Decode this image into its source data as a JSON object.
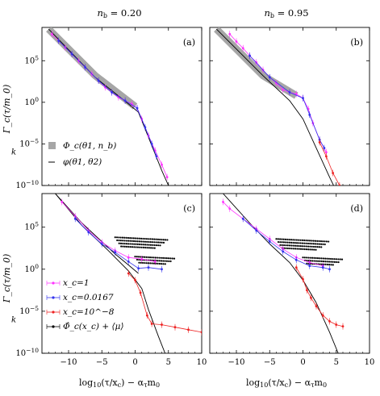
{
  "chart_data": {
    "type": "scatter",
    "x_scale": "linear",
    "y_scale": "log",
    "xlim": [
      -14,
      10
    ],
    "ylim_log10": [
      -10,
      9
    ],
    "xlabel": "log10(τ/x_c) − α_τ m_0",
    "ylabel": "",
    "x_ticks": [
      "−10",
      "−5",
      "0",
      "5",
      "10"
    ],
    "y_ticks": [
      "10^5",
      "10^0",
      "10^−5",
      "10^−10"
    ],
    "column_titles": [
      "n_b = 0.20",
      "n_b = 0.95"
    ],
    "ylabel_fragments": {
      "top": "Γ_c(τ/m_0)",
      "bottom": "Γ_c(τ/m_0)",
      "k_mark": "k"
    },
    "colors": {
      "magenta": "#ff33ff",
      "blue": "#3333ee",
      "red": "#ee2222",
      "black": "#000000",
      "gray": "#a6a6a6"
    },
    "panels": [
      {
        "label": "(a)",
        "legend": [
          {
            "symbol": "gray-square",
            "text": "Φ_c(θ1, n_b)"
          },
          {
            "symbol": "dash",
            "text": "φ(θ1, θ2)"
          }
        ],
        "series": [
          {
            "color": "magenta",
            "points": [
              [
                -12.5,
                8.2
              ],
              [
                -11.5,
                7.4
              ],
              [
                -10.5,
                6.6
              ],
              [
                -9.5,
                5.8
              ],
              [
                -8.5,
                5.0
              ],
              [
                -7.5,
                4.2
              ],
              [
                -6.5,
                3.4
              ],
              [
                -5.5,
                2.6
              ],
              [
                -4.5,
                1.8
              ],
              [
                -3.5,
                1.2
              ],
              [
                -2.5,
                0.6
              ],
              [
                -1.5,
                0.2
              ],
              [
                -0.5,
                -0.2
              ],
              [
                0.3,
                -0.7
              ],
              [
                1,
                -2
              ],
              [
                2,
                -4
              ],
              [
                3,
                -5.8
              ],
              [
                4,
                -7.5
              ],
              [
                4.8,
                -9
              ]
            ]
          },
          {
            "color": "blue",
            "points": [
              [
                -11.5,
                7.4
              ],
              [
                -9.5,
                5.8
              ],
              [
                -7.5,
                4.2
              ],
              [
                -5.5,
                2.6
              ],
              [
                -3.5,
                1.2
              ],
              [
                -1.5,
                0.2
              ],
              [
                0.3,
                -0.7
              ],
              [
                1.5,
                -3
              ],
              [
                2.5,
                -5
              ],
              [
                3.2,
                -6.5
              ]
            ]
          }
        ],
        "curves": [
          {
            "kind": "gray-band",
            "points": [
              [
                -13,
                8.8
              ],
              [
                -6,
                3.2
              ],
              [
                0,
                -0.5
              ]
            ]
          },
          {
            "kind": "black-line",
            "points": [
              [
                -13,
                8.8
              ],
              [
                -6,
                3.0
              ],
              [
                -1,
                -0.2
              ],
              [
                0.5,
                -1.2
              ],
              [
                2,
                -4.2
              ],
              [
                4,
                -8.2
              ],
              [
                5,
                -10
              ]
            ]
          }
        ]
      },
      {
        "label": "(b)",
        "legend": [],
        "series": [
          {
            "color": "magenta",
            "points": [
              [
                -11,
                8.2
              ],
              [
                -10,
                7.3
              ],
              [
                -9,
                6.5
              ],
              [
                -8,
                5.6
              ],
              [
                -7,
                4.8
              ],
              [
                -6,
                3.9
              ],
              [
                -5,
                3.0
              ],
              [
                -4,
                2.3
              ],
              [
                -3,
                1.5
              ],
              [
                -2,
                1.2
              ],
              [
                -1,
                1.0
              ],
              [
                0,
                0.5
              ],
              [
                0.8,
                -0.8
              ],
              [
                1.5,
                -2.5
              ],
              [
                2.5,
                -4.5
              ],
              [
                3.5,
                -6
              ]
            ]
          },
          {
            "color": "blue",
            "points": [
              [
                -8,
                5.6
              ],
              [
                -5,
                3.0
              ],
              [
                -2,
                1.2
              ],
              [
                0,
                0.5
              ],
              [
                1,
                -1.5
              ],
              [
                2.5,
                -4.5
              ],
              [
                3.2,
                -5.5
              ]
            ]
          },
          {
            "color": "red",
            "points": [
              [
                2.5,
                -4.8
              ],
              [
                3.5,
                -6.5
              ],
              [
                4.5,
                -8.5
              ],
              [
                5.5,
                -10
              ]
            ]
          }
        ],
        "curves": [
          {
            "kind": "gray-band",
            "points": [
              [
                -13,
                8.8
              ],
              [
                -6,
                3.2
              ],
              [
                -1,
                0.8
              ]
            ]
          },
          {
            "kind": "black-line",
            "points": [
              [
                -13,
                8.8
              ],
              [
                -6,
                3.2
              ],
              [
                -2,
                0.2
              ],
              [
                0,
                -2
              ],
              [
                2,
                -5.5
              ],
              [
                4,
                -9
              ],
              [
                4.6,
                -10
              ]
            ]
          }
        ]
      },
      {
        "label": "(c)",
        "legend": [
          {
            "symbol": "magenta",
            "text": "x_c=1"
          },
          {
            "symbol": "blue",
            "text": "x_c=0.0167"
          },
          {
            "symbol": "red",
            "text": "x_c=10^−8"
          },
          {
            "symbol": "black",
            "text": "Φ̂_c(x_c) + ⟨μ⟩"
          }
        ],
        "series": [
          {
            "color": "magenta",
            "points": [
              [
                -11,
                8
              ],
              [
                -9,
                6.3
              ],
              [
                -7,
                4.6
              ],
              [
                -5,
                3.2
              ],
              [
                -3,
                2.2
              ],
              [
                -1,
                1.4
              ],
              [
                1,
                1.2
              ],
              [
                3,
                0.9
              ]
            ]
          },
          {
            "color": "blue",
            "points": [
              [
                -9,
                6
              ],
              [
                -7,
                4.4
              ],
              [
                -5,
                3.0
              ],
              [
                -3,
                2.0
              ],
              [
                -1,
                0.9
              ],
              [
                0.5,
                0.1
              ],
              [
                2,
                0.2
              ],
              [
                4,
                0
              ]
            ]
          },
          {
            "color": "red",
            "points": [
              [
                -1,
                -0.5
              ],
              [
                0,
                -1.3
              ],
              [
                0.8,
                -2.8
              ],
              [
                1.8,
                -5.5
              ],
              [
                2.5,
                -6.5
              ],
              [
                4,
                -6.6
              ],
              [
                6,
                -6.9
              ],
              [
                8,
                -7.2
              ],
              [
                10,
                -7.5
              ]
            ]
          }
        ],
        "curves": [
          {
            "kind": "black-line",
            "points": [
              [
                -12,
                9
              ],
              [
                -8,
                5.2
              ],
              [
                -4,
                2.2
              ],
              [
                -1,
                -0.2
              ],
              [
                1,
                -2.3
              ],
              [
                2,
                -4.8
              ],
              [
                3.5,
                -8
              ],
              [
                4.5,
                -10
              ]
            ]
          },
          {
            "kind": "black-line",
            "points": [
              [
                -12,
                9
              ],
              [
                -8,
                5.5
              ],
              [
                -3,
                1.8
              ],
              [
                -1,
                0.5
              ],
              [
                0.5,
                -0.5
              ]
            ]
          }
        ],
        "dotted_blocks": [
          {
            "x_start": -3,
            "x_end": 5,
            "y_top": 3.8,
            "rows": 4
          },
          {
            "x_start": 0,
            "x_end": 6,
            "y_top": 1.5,
            "rows": 3
          }
        ]
      },
      {
        "label": "(d)",
        "legend": [],
        "series": [
          {
            "color": "magenta",
            "points": [
              [
                -12,
                8
              ],
              [
                -11,
                7.2
              ],
              [
                -9,
                6
              ],
              [
                -7,
                4.8
              ],
              [
                -5,
                3.6
              ],
              [
                -3,
                2.4
              ],
              [
                -1,
                1.4
              ],
              [
                1,
                0.8
              ],
              [
                3,
                0.4
              ]
            ]
          },
          {
            "color": "blue",
            "points": [
              [
                -9,
                6
              ],
              [
                -7,
                4.6
              ],
              [
                -5,
                3.3
              ],
              [
                -3,
                2.1
              ],
              [
                -1,
                1.1
              ],
              [
                1,
                0.4
              ],
              [
                3,
                0.2
              ],
              [
                4,
                0
              ]
            ]
          },
          {
            "color": "red",
            "points": [
              [
                -1,
                0.2
              ],
              [
                0,
                -1.2
              ],
              [
                0.6,
                -2.5
              ],
              [
                1.2,
                -3.4
              ],
              [
                2,
                -4.4
              ],
              [
                3,
                -5.5
              ],
              [
                4,
                -6.2
              ],
              [
                5,
                -6.6
              ],
              [
                6,
                -6.8
              ]
            ]
          }
        ],
        "curves": [
          {
            "kind": "black-line",
            "points": [
              [
                -12,
                9
              ],
              [
                -8,
                5.5
              ],
              [
                -5,
                3.0
              ],
              [
                -2,
                0.8
              ],
              [
                0,
                -1.3
              ],
              [
                2,
                -4
              ],
              [
                4,
                -7.5
              ],
              [
                5.3,
                -10
              ]
            ]
          }
        ],
        "dotted_blocks": [
          {
            "x_start": -4,
            "x_end": 4,
            "y_top": 3.6,
            "rows": 4
          },
          {
            "x_start": 0,
            "x_end": 6,
            "y_top": 1.4,
            "rows": 3
          }
        ]
      }
    ]
  }
}
